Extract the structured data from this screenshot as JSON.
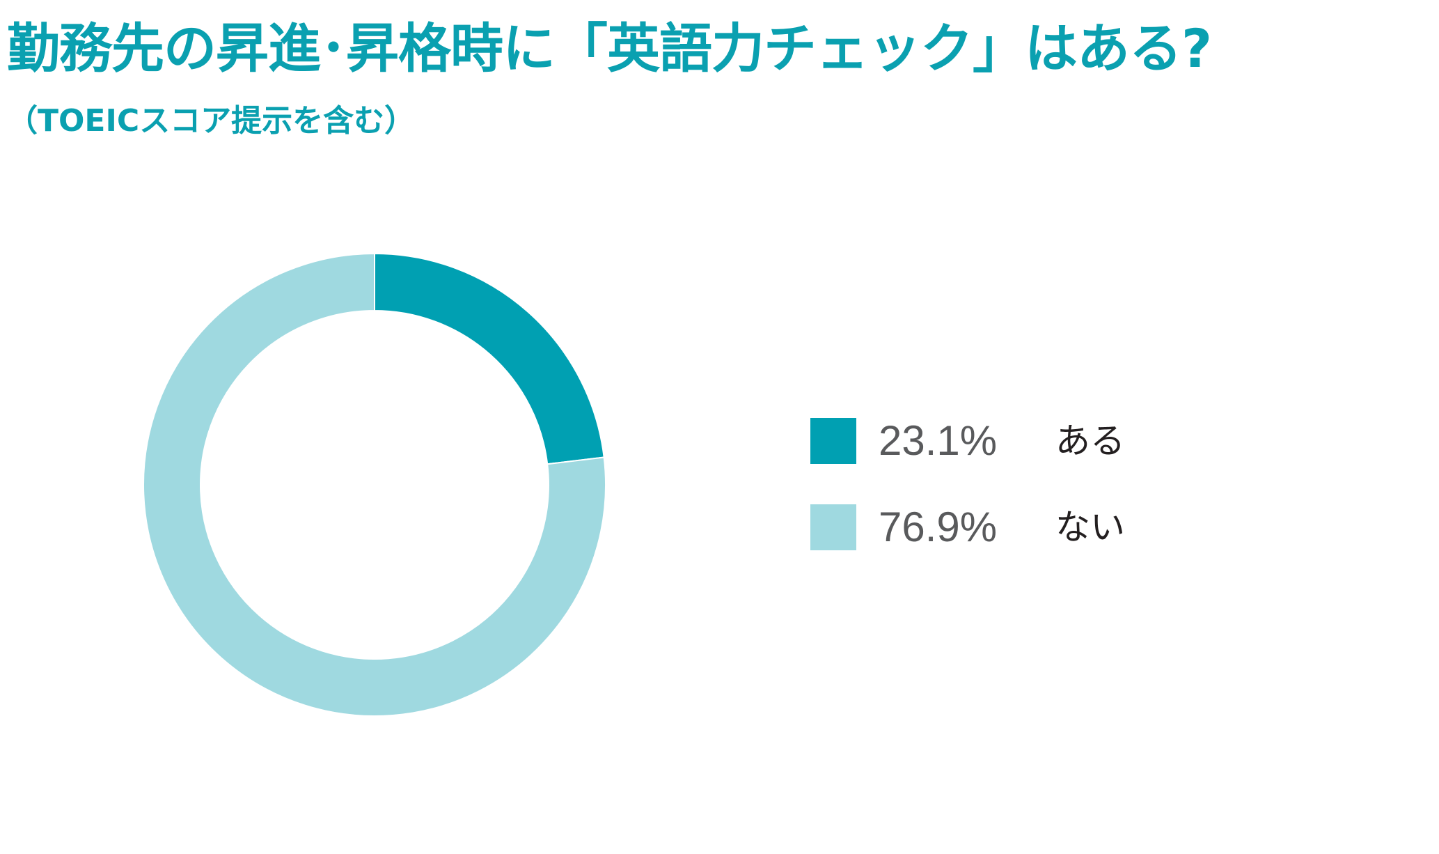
{
  "chart_data": {
    "type": "pie",
    "title": "勤務先の昇進･昇格時に「英語力チェック」はある?",
    "subtitle": "（TOEICスコア提示を含む）",
    "categories": [
      "ある",
      "ない"
    ],
    "values": [
      23.1,
      76.9
    ],
    "value_labels": [
      "23.1%",
      "76.9%"
    ],
    "colors": [
      "#00a0b2",
      "#9fd9e0"
    ],
    "donut": true,
    "legend": "right"
  }
}
